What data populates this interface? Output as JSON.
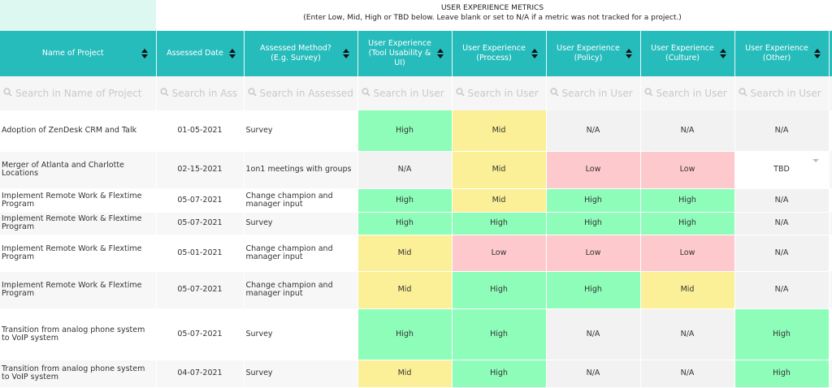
{
  "header": {
    "title": "USER EXPERIENCE METRICS",
    "subtitle": "(Enter Low, Mid, High or TBD below. Leave blank or set to N/A if a metric was not tracked for a project.)"
  },
  "table": {
    "columns": [
      "Name of Project",
      "Assessed Date",
      "Assessed Method? (E.g. Survey)",
      "User Experience (Tool Usability & UI)",
      "User Experience (Process)",
      "User Experience (Policy)",
      "User Experience (Culture)",
      "User Experience (Other)"
    ],
    "search_placeholders": [
      "Search in Name of Project",
      "Search in Ass",
      "Search in Assessed",
      "Search in User",
      "Search in User",
      "Search in User",
      "Search in User",
      "Search in User"
    ],
    "cell_colors": {
      "High": "#8dfdb9",
      "Mid": "#fbf097",
      "Low": "#fdc9cd",
      "N/A": "#f2f2f2",
      "TBD": "#ffffff"
    },
    "rows": [
      [
        "Adoption of ZenDesk CRM and Talk",
        "01-05-2021",
        "Survey",
        "High",
        "Mid",
        "N/A",
        "N/A",
        "N/A"
      ],
      [
        "Merger of Atlanta and Charlotte Locations",
        "02-15-2021",
        "1on1 meetings with groups",
        "N/A",
        "Mid",
        "Low",
        "Low",
        "TBD"
      ],
      [
        "Implement Remote Work & Flextime Program",
        "05-07-2021",
        "Change champion and manager input",
        "High",
        "Mid",
        "High",
        "High",
        "N/A"
      ],
      [
        "Implement Remote Work & Flextime Program",
        "05-07-2021",
        "Survey",
        "High",
        "High",
        "High",
        "High",
        "N/A"
      ],
      [
        "Implement Remote Work & Flextime Program",
        "05-01-2021",
        "Change champion and manager input",
        "Mid",
        "Low",
        "Low",
        "Low",
        "N/A"
      ],
      [
        "Implement Remote Work & Flextime Program",
        "05-07-2021",
        "Change champion and manager input",
        "Mid",
        "High",
        "High",
        "Mid",
        "N/A"
      ],
      [
        "Transition from analog phone system to VoIP system",
        "05-07-2021",
        "Survey",
        "High",
        "High",
        "N/A",
        "N/A",
        "High"
      ],
      [
        "Transition from analog phone system to VoIP system",
        "04-07-2021",
        "Survey",
        "Mid",
        "High",
        "N/A",
        "N/A",
        "High"
      ]
    ]
  }
}
